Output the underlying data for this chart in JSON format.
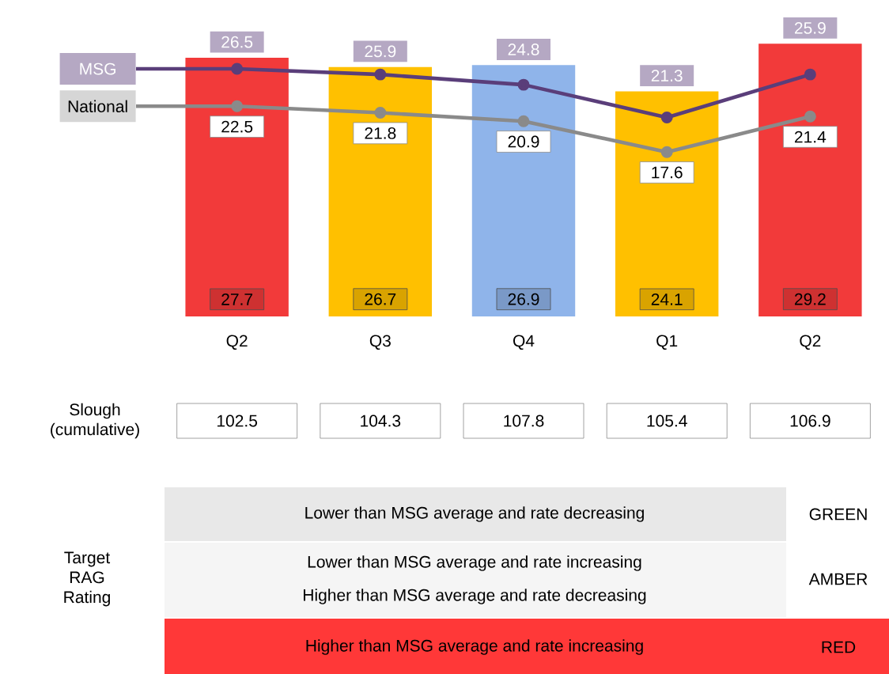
{
  "chart_data": {
    "type": "bar",
    "categories": [
      "Q2",
      "Q3",
      "Q4",
      "Q1",
      "Q2"
    ],
    "series": [
      {
        "colors": [
          "#f23a3a",
          "#ffc000",
          "#8fb4ea",
          "#ffc000",
          "#f23a3a"
        ],
        "values": [
          27.7,
          26.7,
          26.9,
          24.1,
          29.2
        ]
      },
      {
        "type": "line",
        "name": "MSG",
        "color": "#5a3e7a",
        "values": [
          26.5,
          25.9,
          24.8,
          21.3,
          25.9
        ]
      },
      {
        "type": "line",
        "name": "National",
        "color": "#8a8a8a",
        "values": [
          22.5,
          21.8,
          20.9,
          17.6,
          21.4
        ]
      }
    ],
    "data_labels": true,
    "legend": "left",
    "marker": "circle",
    "annotations": [
      "Slough (cumulative)",
      "102.5",
      "104.3",
      "107.8",
      "105.4",
      "106.9",
      "Target RAG Rating",
      "Lower than MSG average and rate decreasing",
      "GREEN",
      "Lower than MSG average and rate increasing",
      "Higher than MSG average and rate decreasing",
      "AMBER",
      "Higher than MSG average and rate increasing",
      "RED"
    ]
  }
}
